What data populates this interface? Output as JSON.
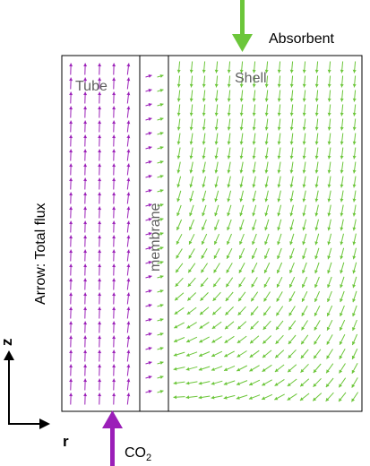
{
  "labels": {
    "absorbent": "Absorbent",
    "co2_main": "CO",
    "co2_sub": "2",
    "tube": "Tube",
    "shell": "Shell",
    "membrane": "membrane",
    "side_label": "Arrow:  Total  flux",
    "axis_z": "z",
    "axis_r": "r"
  },
  "colors": {
    "tube_arrow": "#9b1fb8",
    "shell_arrow": "#6cc63a",
    "frame": "#000000",
    "region_label": "#606060"
  }
}
